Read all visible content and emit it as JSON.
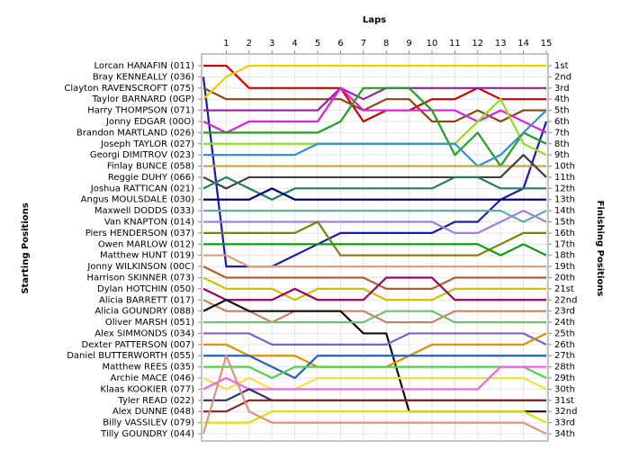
{
  "chart_data": {
    "type": "line",
    "title": "Laps",
    "y_label_left": "Starting Positions",
    "y_label_right": "Finishing Positions",
    "x": [
      0,
      1,
      2,
      3,
      4,
      5,
      6,
      7,
      8,
      9,
      10,
      11,
      12,
      13,
      14,
      15
    ],
    "xlim": [
      0,
      15
    ],
    "xticks": [
      1,
      2,
      3,
      4,
      5,
      6,
      7,
      8,
      9,
      10,
      11,
      12,
      13,
      14,
      15
    ],
    "ylim": [
      34,
      1
    ],
    "yticks": [
      {
        "value": 1,
        "label": "1st"
      },
      {
        "value": 2,
        "label": "2nd"
      },
      {
        "value": 3,
        "label": "3rd"
      },
      {
        "value": 4,
        "label": "4th"
      },
      {
        "value": 5,
        "label": "5th"
      },
      {
        "value": 6,
        "label": "6th"
      },
      {
        "value": 7,
        "label": "7th"
      },
      {
        "value": 8,
        "label": "8th"
      },
      {
        "value": 9,
        "label": "9th"
      },
      {
        "value": 10,
        "label": "10th"
      },
      {
        "value": 11,
        "label": "11th"
      },
      {
        "value": 12,
        "label": "12th"
      },
      {
        "value": 13,
        "label": "13th"
      },
      {
        "value": 14,
        "label": "14th"
      },
      {
        "value": 15,
        "label": "15th"
      },
      {
        "value": 16,
        "label": "16th"
      },
      {
        "value": 17,
        "label": "17th"
      },
      {
        "value": 18,
        "label": "18th"
      },
      {
        "value": 19,
        "label": "19th"
      },
      {
        "value": 20,
        "label": "20th"
      },
      {
        "value": 21,
        "label": "21st"
      },
      {
        "value": 22,
        "label": "22nd"
      },
      {
        "value": 23,
        "label": "23rd"
      },
      {
        "value": 24,
        "label": "24th"
      },
      {
        "value": 25,
        "label": "25th"
      },
      {
        "value": 26,
        "label": "26th"
      },
      {
        "value": 27,
        "label": "27th"
      },
      {
        "value": 28,
        "label": "28th"
      },
      {
        "value": 29,
        "label": "29th"
      },
      {
        "value": 30,
        "label": "30th"
      },
      {
        "value": 31,
        "label": "31st"
      },
      {
        "value": 32,
        "label": "32nd"
      },
      {
        "value": 33,
        "label": "33rd"
      },
      {
        "value": 34,
        "label": "34th"
      }
    ],
    "grid": true,
    "series": [
      {
        "name": "Lorcan HANAFIN (011)",
        "color": "#d40000",
        "values": [
          1,
          1,
          3,
          3,
          3,
          3,
          3,
          6,
          5,
          5,
          4,
          4,
          3,
          4,
          4,
          4
        ]
      },
      {
        "name": "Bray KENNEALLY (036)",
        "color": "#1a1ab0",
        "values": [
          2,
          19,
          19,
          19,
          18,
          17,
          16,
          16,
          16,
          16,
          16,
          15,
          15,
          13,
          12,
          6
        ]
      },
      {
        "name": "Clayton RAVENSCROFT (075)",
        "color": "#8b4513",
        "values": [
          3,
          4,
          4,
          4,
          4,
          4,
          4,
          5,
          4,
          4,
          6,
          6,
          5,
          6,
          5,
          5
        ]
      },
      {
        "name": "Taylor BARNARD (0GP)",
        "color": "#e8d000",
        "values": [
          4,
          2,
          1,
          1,
          1,
          1,
          1,
          1,
          1,
          1,
          1,
          1,
          1,
          1,
          1,
          1
        ]
      },
      {
        "name": "Harry THOMPSON (071)",
        "color": "#9b1fa0",
        "values": [
          5,
          5,
          5,
          5,
          5,
          5,
          3,
          4,
          3,
          3,
          3,
          3,
          3,
          3,
          3,
          3
        ]
      },
      {
        "name": "Jonny EDGAR (00O)",
        "color": "#e020e0",
        "values": [
          6,
          7,
          6,
          6,
          6,
          6,
          3,
          5,
          5,
          5,
          5,
          5,
          6,
          5,
          6,
          7
        ]
      },
      {
        "name": "Brandon MARTLAND (026)",
        "color": "#20a020",
        "values": [
          7,
          7,
          7,
          7,
          7,
          7,
          6,
          3,
          3,
          3,
          5,
          9,
          7,
          10,
          7,
          8
        ]
      },
      {
        "name": "Joseph TAYLOR (027)",
        "color": "#90e020",
        "values": [
          8,
          8,
          8,
          8,
          8,
          8,
          8,
          8,
          8,
          8,
          8,
          8,
          6,
          4,
          8,
          9
        ]
      },
      {
        "name": "Georgi DIMITROV (023)",
        "color": "#3090e0",
        "values": [
          9,
          9,
          9,
          9,
          9,
          8,
          8,
          8,
          8,
          8,
          8,
          8,
          10,
          9,
          7,
          5
        ]
      },
      {
        "name": "Finlay BUNCE (058)",
        "color": "#c8a040",
        "values": [
          10,
          10,
          10,
          10,
          10,
          10,
          10,
          10,
          10,
          10,
          10,
          10,
          10,
          10,
          10,
          10
        ]
      },
      {
        "name": "Reggie DUHY (066)",
        "color": "#404040",
        "values": [
          11,
          12,
          11,
          11,
          11,
          11,
          11,
          11,
          11,
          11,
          11,
          11,
          11,
          11,
          9,
          11
        ]
      },
      {
        "name": "Joshua RATTICAN (021)",
        "color": "#208060",
        "values": [
          12,
          11,
          12,
          13,
          12,
          12,
          12,
          12,
          12,
          12,
          12,
          11,
          11,
          12,
          12,
          12
        ]
      },
      {
        "name": "Angus MOULSDALE (030)",
        "color": "#000080",
        "values": [
          13,
          13,
          13,
          12,
          13,
          13,
          13,
          13,
          13,
          13,
          13,
          13,
          13,
          13,
          13,
          13
        ]
      },
      {
        "name": "Maxwell DODDS (033)",
        "color": "#60b0a0",
        "values": [
          14,
          14,
          14,
          14,
          14,
          14,
          14,
          14,
          14,
          14,
          14,
          14,
          14,
          14,
          15,
          14
        ]
      },
      {
        "name": "Van KNAPTON (014)",
        "color": "#a080e0",
        "values": [
          15,
          15,
          15,
          15,
          15,
          15,
          15,
          15,
          15,
          15,
          15,
          16,
          16,
          15,
          14,
          15
        ]
      },
      {
        "name": "Piers HENDERSON (037)",
        "color": "#808000",
        "values": [
          16,
          16,
          16,
          16,
          16,
          15,
          18,
          18,
          18,
          18,
          18,
          18,
          18,
          17,
          16,
          16
        ]
      },
      {
        "name": "Owen MARLOW (012)",
        "color": "#00a000",
        "values": [
          17,
          17,
          17,
          17,
          17,
          17,
          17,
          17,
          17,
          17,
          17,
          17,
          17,
          18,
          17,
          18
        ]
      },
      {
        "name": "Matthew HUNT (019)",
        "color": "#e0a080",
        "values": [
          18,
          18,
          19,
          19,
          19,
          19,
          19,
          19,
          19,
          19,
          19,
          19,
          19,
          19,
          19,
          19
        ]
      },
      {
        "name": "Jonny WILKINSON (00C)",
        "color": "#b06030",
        "values": [
          19,
          20,
          20,
          20,
          20,
          20,
          20,
          20,
          21,
          21,
          21,
          20,
          20,
          20,
          20,
          20
        ]
      },
      {
        "name": "Harrison SKINNER (073)",
        "color": "#d0c000",
        "values": [
          20,
          21,
          21,
          21,
          22,
          21,
          21,
          21,
          22,
          22,
          22,
          21,
          21,
          21,
          21,
          21
        ]
      },
      {
        "name": "Dylan HOTCHIN (050)",
        "color": "#a00060",
        "values": [
          21,
          22,
          22,
          22,
          21,
          22,
          22,
          22,
          20,
          20,
          20,
          22,
          22,
          22,
          22,
          22
        ]
      },
      {
        "name": "Alicia BARRETT (017)",
        "color": "#d08060",
        "values": [
          22,
          23,
          23,
          24,
          23,
          23,
          23,
          23,
          24,
          24,
          24,
          23,
          23,
          23,
          23,
          23
        ]
      },
      {
        "name": "Alicia GOUNDRY (088)",
        "color": "#101010",
        "values": [
          23,
          22,
          23,
          23,
          23,
          23,
          23,
          25,
          25,
          32,
          32,
          32,
          32,
          32,
          32,
          32
        ]
      },
      {
        "name": "Oliver MARSH (051)",
        "color": "#70c070",
        "values": [
          24,
          24,
          24,
          24,
          24,
          24,
          24,
          24,
          23,
          23,
          23,
          24,
          24,
          24,
          24,
          24
        ]
      },
      {
        "name": "Alex SIMMONDS (034)",
        "color": "#8060c0",
        "values": [
          25,
          25,
          25,
          26,
          26,
          26,
          26,
          26,
          26,
          25,
          25,
          25,
          25,
          25,
          25,
          26
        ]
      },
      {
        "name": "Dexter PATTERSON (007)",
        "color": "#e09000",
        "values": [
          26,
          26,
          27,
          27,
          27,
          28,
          28,
          28,
          28,
          27,
          26,
          26,
          26,
          26,
          26,
          25
        ]
      },
      {
        "name": "Daniel BUTTERWORTH (055)",
        "color": "#2060c0",
        "values": [
          27,
          27,
          27,
          28,
          29,
          27,
          27,
          27,
          27,
          27,
          27,
          27,
          27,
          27,
          27,
          27
        ]
      },
      {
        "name": "Matthew REES (035)",
        "color": "#50d050",
        "values": [
          28,
          28,
          28,
          29,
          28,
          28,
          28,
          28,
          28,
          28,
          28,
          28,
          28,
          28,
          28,
          29
        ]
      },
      {
        "name": "Archie MACE (046)",
        "color": "#f0e040",
        "values": [
          29,
          30,
          29,
          30,
          30,
          29,
          29,
          29,
          29,
          29,
          29,
          29,
          29,
          29,
          29,
          30
        ]
      },
      {
        "name": "Klaas KOOKIER (077)",
        "color": "#f060f0",
        "values": [
          30,
          29,
          30,
          30,
          30,
          30,
          30,
          30,
          30,
          30,
          30,
          30,
          30,
          28,
          28,
          28
        ]
      },
      {
        "name": "Tyler READ (022)",
        "color": "#303060",
        "values": [
          31,
          31,
          30,
          31,
          31,
          31,
          31,
          31,
          31,
          31,
          31,
          31,
          31,
          31,
          31,
          31
        ]
      },
      {
        "name": "Alex DUNNE (048)",
        "color": "#8a2020",
        "values": [
          32,
          32,
          31,
          31,
          31,
          31,
          31,
          31,
          31,
          31,
          31,
          31,
          31,
          31,
          31,
          31
        ]
      },
      {
        "name": "Billy VASSILEV (079)",
        "color": "#e0e000",
        "values": [
          33,
          33,
          33,
          32,
          32,
          32,
          32,
          32,
          32,
          32,
          32,
          32,
          32,
          32,
          32,
          33
        ]
      },
      {
        "name": "Tilly GOUNDRY (044)",
        "color": "#e09080",
        "values": [
          34,
          27,
          32,
          33,
          33,
          33,
          33,
          33,
          33,
          33,
          33,
          33,
          33,
          33,
          33,
          34
        ]
      }
    ]
  }
}
